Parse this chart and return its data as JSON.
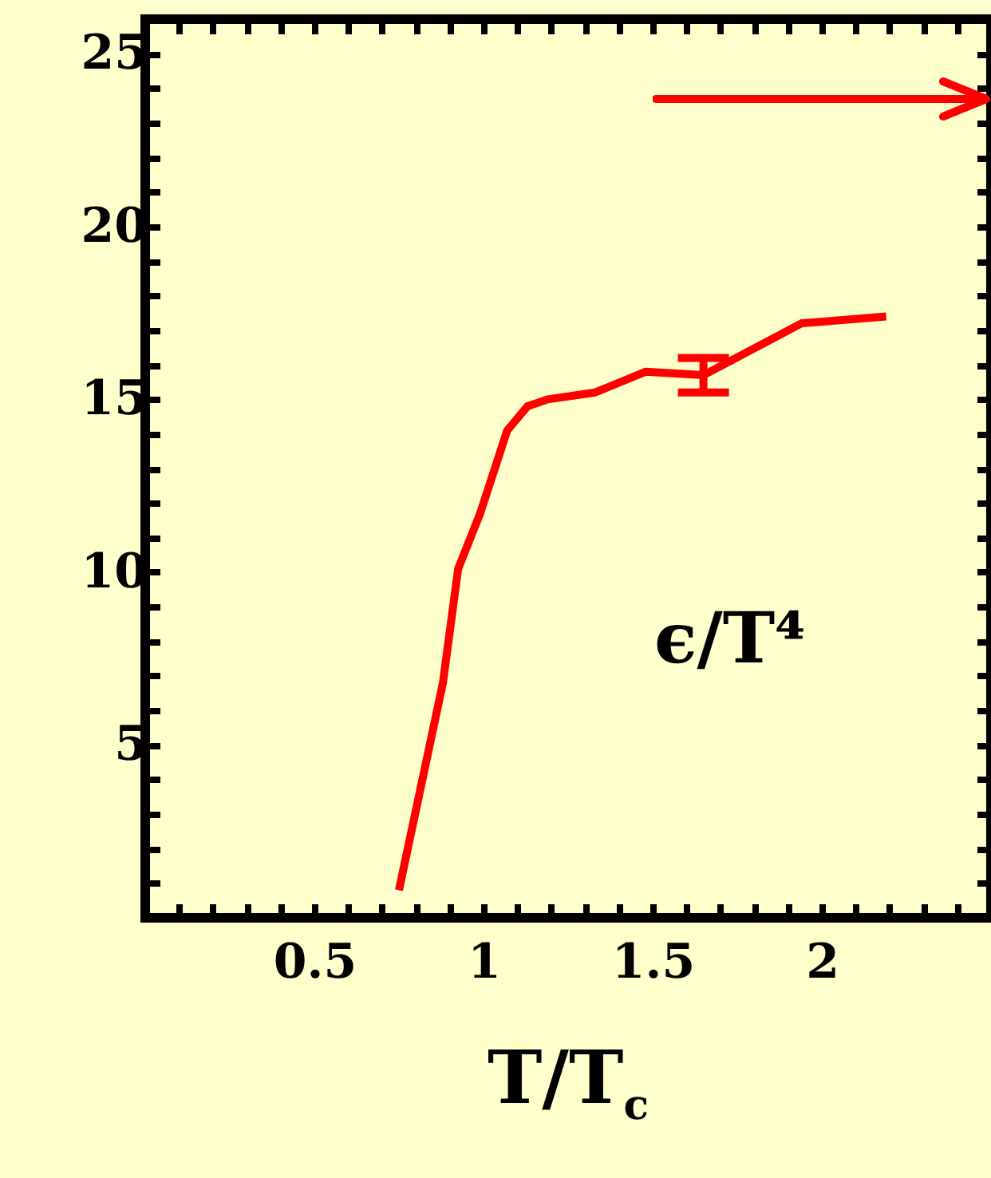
{
  "chart_data": {
    "type": "line",
    "xlabel": "T/T$_{c}$",
    "xlim": [
      0,
      2.5
    ],
    "ylim": [
      0,
      26
    ],
    "xticks": [
      {
        "value": 0.1,
        "label": null
      },
      {
        "value": 0.2,
        "label": null
      },
      {
        "value": 0.3,
        "label": null
      },
      {
        "value": 0.4,
        "label": null
      },
      {
        "value": 0.5,
        "label": "0.5"
      },
      {
        "value": 0.6,
        "label": null
      },
      {
        "value": 0.7,
        "label": null
      },
      {
        "value": 0.8,
        "label": null
      },
      {
        "value": 0.9,
        "label": null
      },
      1,
      {
        "value": 1.1,
        "label": null
      },
      {
        "value": 1.2,
        "label": null
      },
      {
        "value": 1.3,
        "label": null
      },
      {
        "value": 1.4,
        "label": null
      },
      {
        "value": 1.5,
        "label": "1.5"
      },
      {
        "value": 1.6,
        "label": null
      },
      {
        "value": 1.7,
        "label": null
      },
      {
        "value": 1.8,
        "label": null
      },
      {
        "value": 1.9,
        "label": null
      },
      2,
      {
        "value": 2.1,
        "label": null
      },
      {
        "value": 2.2,
        "label": null
      },
      {
        "value": 2.3,
        "label": null
      },
      {
        "value": 2.4,
        "label": null
      }
    ],
    "yticks": [
      {
        "value": 1,
        "label": null
      },
      {
        "value": 2,
        "label": null
      },
      {
        "value": 3,
        "label": null
      },
      {
        "value": 4,
        "label": null
      },
      5,
      {
        "value": 6,
        "label": null
      },
      {
        "value": 7,
        "label": null
      },
      {
        "value": 8,
        "label": null
      },
      {
        "value": 9,
        "label": null
      },
      10,
      {
        "value": 11,
        "label": null
      },
      {
        "value": 12,
        "label": null
      },
      {
        "value": 13,
        "label": null
      },
      {
        "value": 14,
        "label": null
      },
      15,
      {
        "value": 16,
        "label": null
      },
      {
        "value": 17,
        "label": null
      },
      {
        "value": 18,
        "label": null
      },
      {
        "value": 19,
        "label": null
      },
      20,
      {
        "value": 21,
        "label": null
      },
      {
        "value": 22,
        "label": null
      },
      {
        "value": 23,
        "label": null
      },
      {
        "value": 24,
        "label": null
      },
      25
    ],
    "series": [
      {
        "color": "#ff0000",
        "x": [
          0.75,
          0.88,
          0.925,
          0.99,
          1.07,
          1.13,
          1.19,
          1.33,
          1.48,
          1.65,
          1.94,
          2.19
        ],
        "values": [
          0.8,
          6.8,
          10.1,
          11.7,
          14.1,
          14.8,
          15.0,
          15.2,
          15.8,
          15.7,
          17.2,
          17.4
        ],
        "errors": [
          null,
          null,
          null,
          null,
          null,
          null,
          null,
          null,
          null,
          0.5,
          null,
          null
        ]
      }
    ],
    "annotations": [
      "ϵ/T⁴"
    ]
  }
}
